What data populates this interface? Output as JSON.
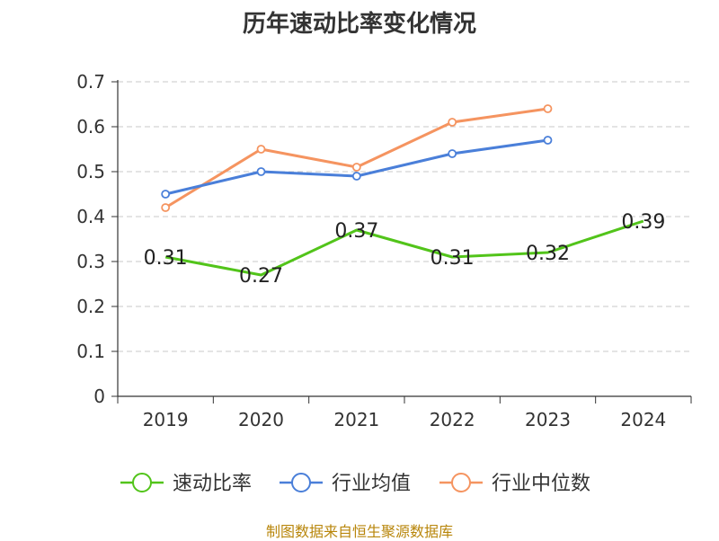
{
  "title": "历年速动比率变化情况",
  "footer": "制图数据来自恒生聚源数据库",
  "chart_data": {
    "type": "line",
    "title": "历年速动比率变化情况",
    "xlabel": "",
    "ylabel": "",
    "categories": [
      "2019",
      "2020",
      "2021",
      "2022",
      "2023",
      "2024"
    ],
    "ylim": [
      0,
      0.7
    ],
    "yticks": [
      "0",
      "0.1",
      "0.2",
      "0.3",
      "0.4",
      "0.5",
      "0.6",
      "0.7"
    ],
    "grid": true,
    "legend_position": "bottom",
    "series": [
      {
        "name": "速动比率",
        "color": "#52c41a",
        "values": [
          0.31,
          0.27,
          0.37,
          0.31,
          0.32,
          0.39
        ],
        "labels": [
          "0.31",
          "0.27",
          "0.37",
          "0.31",
          "0.32",
          "0.39"
        ]
      },
      {
        "name": "行业均值",
        "color": "#4a7fd9",
        "values": [
          0.45,
          0.5,
          0.49,
          0.54,
          0.57,
          null
        ]
      },
      {
        "name": "行业中位数",
        "color": "#f59460",
        "values": [
          0.42,
          0.55,
          0.51,
          0.61,
          0.64,
          null
        ]
      }
    ]
  }
}
